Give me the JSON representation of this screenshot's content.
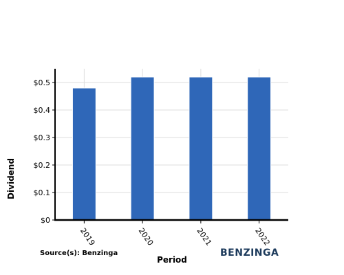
{
  "chart_data": {
    "type": "bar",
    "categories": [
      "2019",
      "2020",
      "2021",
      "2022"
    ],
    "values": [
      0.48,
      0.52,
      0.52,
      0.52
    ],
    "xlabel": "Period",
    "ylabel": "Dividend",
    "ylim": [
      0,
      0.55
    ],
    "y_ticks": [
      0,
      0.1,
      0.2,
      0.3,
      0.4,
      0.5
    ],
    "y_tick_labels": [
      "$0",
      "$0.1",
      "$0.2",
      "$0.3",
      "$0.4",
      "$0.5"
    ],
    "grid": true,
    "bar_color": "#2f67b8"
  },
  "footer": {
    "source": "Source(s): Benzinga",
    "brand": "BENZINGA"
  },
  "colors": {
    "brand": "#1d3b5c",
    "grid": "#dddddd",
    "axis": "#000000"
  }
}
